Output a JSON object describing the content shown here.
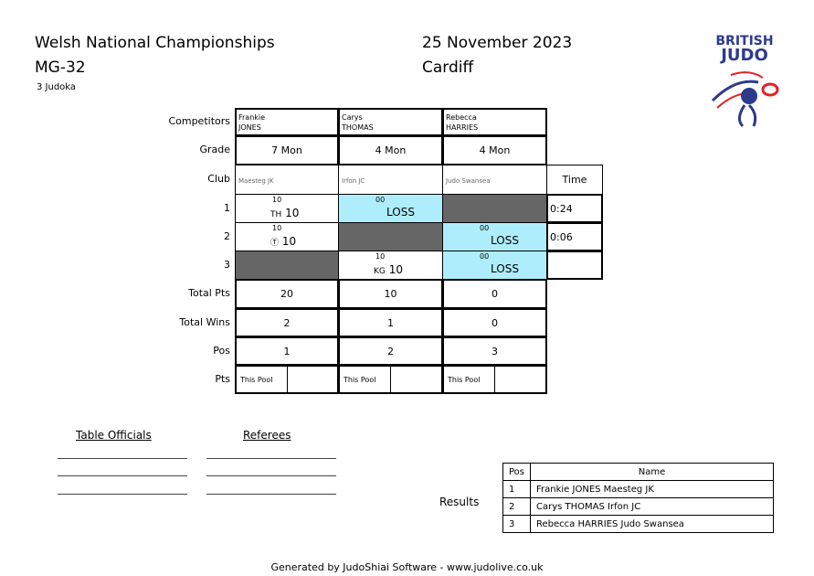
{
  "header": {
    "title": "Welsh National Championships",
    "category": "MG-32",
    "count": "3 Judoka",
    "date": "25 November 2023",
    "location": "Cardiff"
  },
  "logo": {
    "text": "BRITISH JUDO",
    "colors": {
      "blue": "#2c3a8c",
      "red": "#e3212b"
    }
  },
  "labels": {
    "competitors": "Competitors",
    "grade": "Grade",
    "club": "Club",
    "time": "Time",
    "rows": [
      "1",
      "2",
      "3"
    ],
    "total_pts": "Total Pts",
    "total_wins": "Total Wins",
    "pos": "Pos",
    "pts": "Pts"
  },
  "competitors": [
    {
      "first": "Frankie",
      "last": "JONES",
      "grade": "7 Mon",
      "club": "Maesteg JK",
      "total_pts": "20",
      "total_wins": "2",
      "pos": "1",
      "this_pool": "This Pool"
    },
    {
      "first": "Carys",
      "last": "THOMAS",
      "grade": "4 Mon",
      "club": "Irfon JC",
      "total_pts": "10",
      "total_wins": "1",
      "pos": "2",
      "this_pool": "This Pool"
    },
    {
      "first": "Rebecca",
      "last": "HARRIES",
      "grade": "4 Mon",
      "club": "Judo Swansea",
      "total_pts": "0",
      "total_wins": "0",
      "pos": "3",
      "this_pool": "This Pool"
    }
  ],
  "matches": [
    [
      {
        "score": "10",
        "tech": "TH",
        "result": "10",
        "type": "win"
      },
      {
        "score": "00",
        "result": "LOSS",
        "type": "loss"
      },
      {
        "type": "blank"
      }
    ],
    [
      {
        "score": "10",
        "tech": "Ⓣ",
        "result": "10",
        "type": "win"
      },
      {
        "type": "blank"
      },
      {
        "score": "00",
        "result": "LOSS",
        "type": "loss"
      }
    ],
    [
      {
        "type": "blank"
      },
      {
        "score": "10",
        "tech": "KG",
        "result": "10",
        "type": "win"
      },
      {
        "score": "00",
        "result": "LOSS",
        "type": "loss"
      }
    ]
  ],
  "times": [
    "0:24",
    "0:06",
    ""
  ],
  "officials": {
    "table": "Table Officials",
    "referees": "Referees"
  },
  "results": {
    "label": "Results",
    "headers": [
      "Pos",
      "Name"
    ],
    "rows": [
      [
        "1",
        "Frankie JONES Maesteg JK"
      ],
      [
        "2",
        "Carys THOMAS Irfon JC"
      ],
      [
        "3",
        "Rebecca HARRIES Judo Swansea"
      ]
    ]
  },
  "footer": "Generated by JudoShiai Software - www.judolive.co.uk"
}
